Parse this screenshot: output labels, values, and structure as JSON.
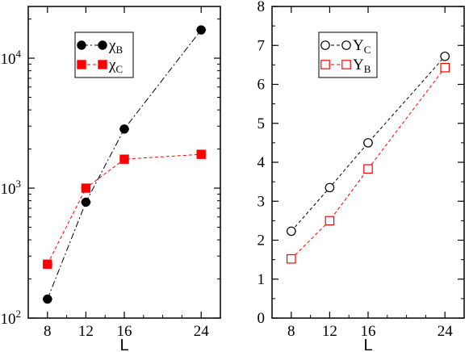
{
  "chart_data": [
    {
      "type": "line",
      "x": [
        8,
        12,
        16,
        24
      ],
      "xticks": [
        "8",
        "12",
        "16",
        "24"
      ],
      "xlim": [
        6,
        26
      ],
      "yscale": "log",
      "ylim": [
        100,
        25000
      ],
      "yticks": [
        {
          "value": 100,
          "base": "10",
          "exp": "2"
        },
        {
          "value": 1000,
          "base": "10",
          "exp": "3"
        },
        {
          "value": 10000,
          "base": "10",
          "exp": "4"
        }
      ],
      "xlabel": "L",
      "ylabel": "",
      "legend_position": "top-left",
      "series": [
        {
          "name": "χ",
          "sub": "B",
          "color": "#000000",
          "marker": "circle-filled",
          "line": "dash-dot",
          "values": [
            140,
            780,
            2850,
            16500
          ],
          "xerr": [
            0.5,
            0.5,
            0.5,
            0.5
          ]
        },
        {
          "name": "χ",
          "sub": "C",
          "color": "#ff0000",
          "marker": "square-filled",
          "line": "dashed",
          "values": [
            260,
            1000,
            1670,
            1820
          ],
          "xerr": [
            0.5,
            0.5,
            0.5,
            0.5
          ]
        }
      ]
    },
    {
      "type": "line",
      "x": [
        8,
        12,
        16,
        24
      ],
      "xticks": [
        "8",
        "12",
        "16",
        "24"
      ],
      "xlim": [
        6,
        26
      ],
      "ylim": [
        0,
        8
      ],
      "yticks": [
        "0",
        "1",
        "2",
        "3",
        "4",
        "5",
        "6",
        "7",
        "8"
      ],
      "xlabel": "L",
      "ylabel": "",
      "legend_position": "top-left",
      "series": [
        {
          "name": "Υ",
          "sub": "C",
          "color": "#000000",
          "marker": "circle-open",
          "line": "dashed",
          "values": [
            2.23,
            3.35,
            4.5,
            6.72
          ],
          "xerr": [
            0.5,
            0.5,
            0.5,
            0.5
          ]
        },
        {
          "name": "Υ",
          "sub": "B",
          "color": "#ff0000",
          "marker": "square-open",
          "line": "dashed",
          "values": [
            1.52,
            2.5,
            3.83,
            6.43
          ],
          "xerr": [
            0.3,
            0.3,
            0.3,
            0.3
          ]
        }
      ]
    }
  ]
}
